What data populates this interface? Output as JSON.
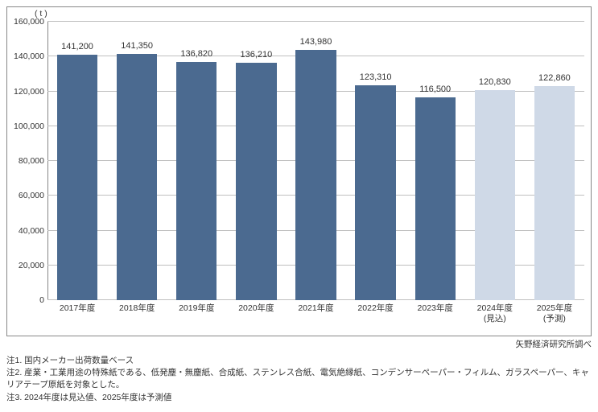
{
  "chart": {
    "type": "bar",
    "unit_label": "( t )",
    "y": {
      "min": 0,
      "max": 160000,
      "tick_step": 20000,
      "ticks": [
        0,
        20000,
        40000,
        60000,
        80000,
        100000,
        120000,
        140000,
        160000
      ],
      "tick_labels": [
        "0",
        "20,000",
        "40,000",
        "60,000",
        "80,000",
        "100,000",
        "120,000",
        "140,000",
        "160,000"
      ]
    },
    "series": [
      {
        "category": "2017年度",
        "sub": "",
        "value": 141200,
        "label": "141,200",
        "color": "#4b6a90"
      },
      {
        "category": "2018年度",
        "sub": "",
        "value": 141350,
        "label": "141,350",
        "color": "#4b6a90"
      },
      {
        "category": "2019年度",
        "sub": "",
        "value": 136820,
        "label": "136,820",
        "color": "#4b6a90"
      },
      {
        "category": "2020年度",
        "sub": "",
        "value": 136210,
        "label": "136,210",
        "color": "#4b6a90"
      },
      {
        "category": "2021年度",
        "sub": "",
        "value": 143980,
        "label": "143,980",
        "color": "#4b6a90"
      },
      {
        "category": "2022年度",
        "sub": "",
        "value": 123310,
        "label": "123,310",
        "color": "#4b6a90"
      },
      {
        "category": "2023年度",
        "sub": "",
        "value": 116500,
        "label": "116,500",
        "color": "#4b6a90"
      },
      {
        "category": "2024年度",
        "sub": "(見込)",
        "value": 120830,
        "label": "120,830",
        "color": "#cfd9e7"
      },
      {
        "category": "2025年度",
        "sub": "(予測)",
        "value": 122860,
        "label": "122,860",
        "color": "#cfd9e7"
      }
    ],
    "colors": {
      "grid": "#bfbfbf",
      "axis": "#888888",
      "background": "#ffffff",
      "text": "#333333"
    },
    "bar_width_ratio": 0.68,
    "label_fontsize": 11,
    "tick_fontsize": 10.5
  },
  "credit": "矢野経済研究所調べ",
  "notes": {
    "n1": "注1.  国内メーカー出荷数量ベース",
    "n2": "注2.  産業・工業用途の特殊紙である、低発塵・無塵紙、合成紙、ステンレス合紙、電気絶縁紙、コンデンサーペーパー・フィルム、ガラスペーパー、キャリアテープ原紙を対象とした。",
    "n3": "注3.  2024年度は見込値、2025年度は予測値"
  }
}
